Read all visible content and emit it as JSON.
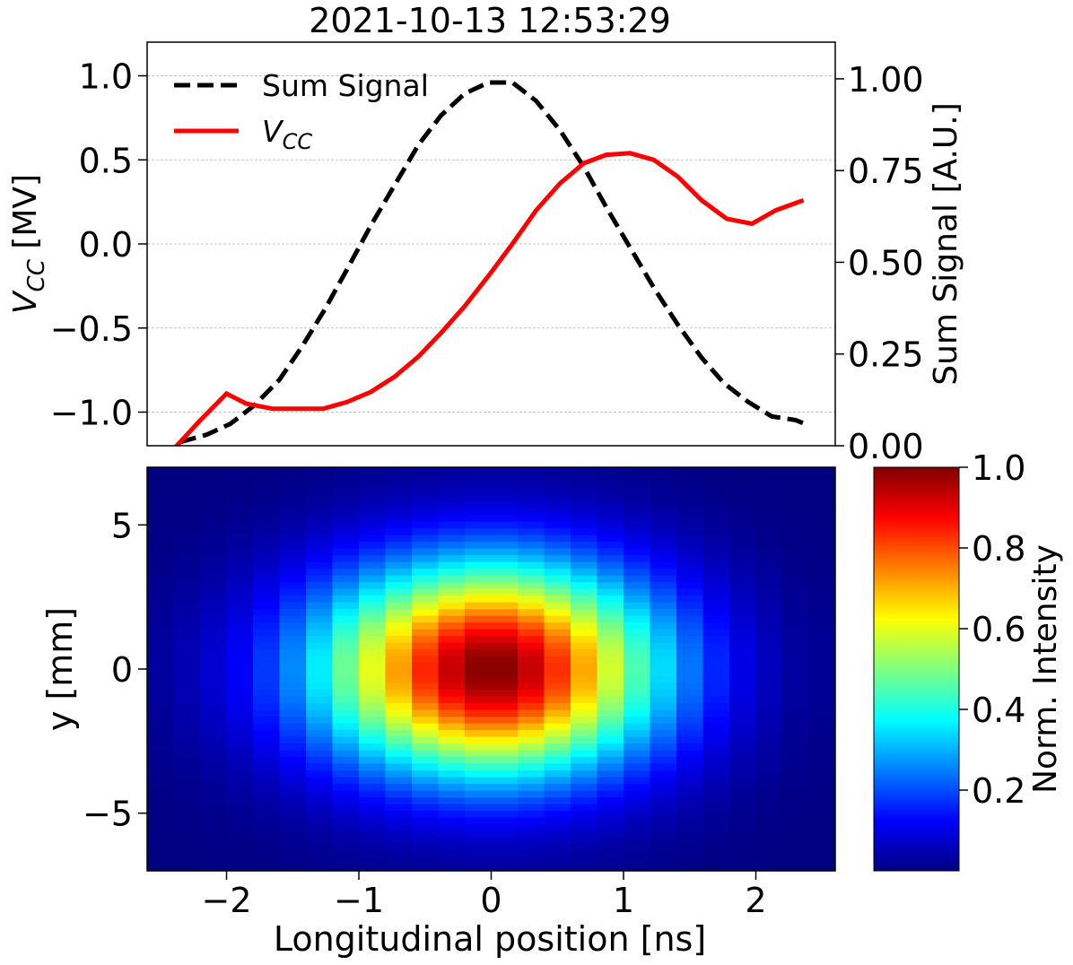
{
  "chart_data": [
    {
      "type": "line",
      "title": "2021-10-13 12:53:29",
      "xlim": [
        -2.6,
        2.6
      ],
      "grid": "horizontal dashed (left axis)",
      "legend": {
        "placement": "upper-left",
        "entries": [
          {
            "label": "Sum Signal",
            "style": "dashed",
            "color": "#000000"
          },
          {
            "label": "V",
            "subscript": "CC",
            "style": "solid",
            "color": "#ff0000"
          }
        ]
      },
      "left_axis": {
        "label": "V",
        "label_subscript": "CC",
        "label_suffix": " [MV]",
        "ylim": [
          -1.2,
          1.2
        ],
        "ticks": [
          1.0,
          0.5,
          0.0,
          -0.5,
          -1.0
        ],
        "tick_labels": [
          "1.0",
          "0.5",
          "0.0",
          "−0.5",
          "−1.0"
        ]
      },
      "right_axis": {
        "label": "Sum Signal [A.U.]",
        "ylim": [
          0.0,
          1.1
        ],
        "ticks": [
          1.0,
          0.75,
          0.5,
          0.25,
          0.0
        ],
        "tick_labels": [
          "1.00",
          "0.75",
          "0.50",
          "0.25",
          "0.00"
        ]
      },
      "series": [
        {
          "name": "Sum Signal",
          "axis": "right",
          "color": "#000000",
          "style": "dashed",
          "x": [
            -2.35,
            -2.15,
            -1.97,
            -1.79,
            -1.6,
            -1.43,
            -1.26,
            -1.09,
            -0.91,
            -0.73,
            -0.55,
            -0.38,
            -0.2,
            -0.02,
            0.16,
            0.34,
            0.52,
            0.7,
            0.87,
            1.05,
            1.23,
            1.41,
            1.59,
            1.76,
            1.94,
            2.12,
            2.3,
            2.37
          ],
          "y": [
            0.01,
            0.03,
            0.06,
            0.11,
            0.18,
            0.27,
            0.37,
            0.48,
            0.6,
            0.71,
            0.82,
            0.9,
            0.96,
            0.99,
            0.99,
            0.94,
            0.86,
            0.76,
            0.65,
            0.54,
            0.43,
            0.33,
            0.24,
            0.17,
            0.12,
            0.08,
            0.07,
            0.06
          ]
        },
        {
          "name": "V",
          "axis": "left",
          "color": "#ff0000",
          "style": "solid",
          "x": [
            -2.4,
            -2.2,
            -2.0,
            -1.85,
            -1.65,
            -1.45,
            -1.27,
            -1.09,
            -0.91,
            -0.73,
            -0.55,
            -0.38,
            -0.2,
            -0.02,
            0.16,
            0.34,
            0.52,
            0.7,
            0.87,
            1.05,
            1.23,
            1.41,
            1.59,
            1.78,
            1.97,
            2.15,
            2.36
          ],
          "y": [
            -1.22,
            -1.05,
            -0.89,
            -0.95,
            -0.98,
            -0.98,
            -0.98,
            -0.94,
            -0.88,
            -0.79,
            -0.67,
            -0.53,
            -0.37,
            -0.19,
            0.0,
            0.2,
            0.36,
            0.48,
            0.53,
            0.54,
            0.5,
            0.4,
            0.26,
            0.15,
            0.12,
            0.2,
            0.26
          ]
        }
      ]
    },
    {
      "type": "heatmap",
      "xlabel": "Longitudinal position [ns]",
      "ylabel": "y [mm]",
      "xlim": [
        -2.6,
        2.6
      ],
      "ylim": [
        -7.0,
        7.0
      ],
      "x_ticks": [
        -2,
        -1,
        0,
        1,
        2
      ],
      "x_tick_labels": [
        "−2",
        "−1",
        "0",
        "1",
        "2"
      ],
      "y_ticks": [
        5,
        0,
        -5
      ],
      "y_tick_labels": [
        "5",
        "0",
        "−5"
      ],
      "colormap": "jet",
      "x_bins": [
        -2.6,
        -2.4,
        -2.2,
        -2.0,
        -1.8,
        -1.6,
        -1.4,
        -1.2,
        -1.0,
        -0.8,
        -0.6,
        -0.4,
        -0.2,
        0.0,
        0.2,
        0.4,
        0.6,
        0.8,
        1.0,
        1.2,
        1.4,
        1.6,
        1.8,
        2.0,
        2.2,
        2.4,
        2.6
      ],
      "x_profile": [
        0.03,
        0.05,
        0.08,
        0.12,
        0.18,
        0.26,
        0.36,
        0.48,
        0.6,
        0.72,
        0.84,
        0.93,
        0.99,
        0.99,
        0.93,
        0.83,
        0.71,
        0.58,
        0.45,
        0.34,
        0.24,
        0.16,
        0.1,
        0.06,
        0.03,
        0.02
      ],
      "y_center": 0.0,
      "y_sigma_mm": 2.6,
      "peak": 1.0,
      "colorbar": {
        "label": "Norm. Intensity",
        "range": [
          0.0,
          1.0
        ],
        "ticks": [
          1.0,
          0.8,
          0.6,
          0.4,
          0.2
        ],
        "tick_labels": [
          "1.0",
          "0.8",
          "0.6",
          "0.4",
          "0.2"
        ]
      }
    }
  ]
}
